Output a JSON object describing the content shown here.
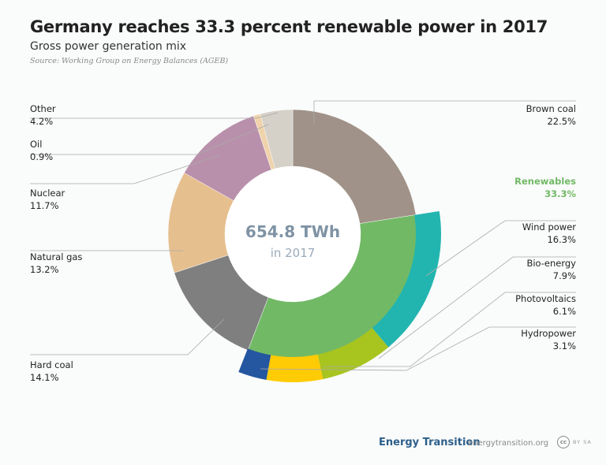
{
  "header": {
    "title": "Germany reaches 33.3 percent renewable power in 2017",
    "subtitle": "Gross power generation mix",
    "source": "Source: Working Group on Energy Balances (AGEB)"
  },
  "chart_data": {
    "type": "pie",
    "style": "nested donut",
    "center_value": "654.8 TWh",
    "center_label": "in 2017",
    "inner_ring": [
      {
        "name": "Brown coal",
        "value": 22.5,
        "label": "22.5%",
        "color": "#a09288"
      },
      {
        "name": "Renewables",
        "value": 33.3,
        "label": "33.3%",
        "color": "#72b966"
      },
      {
        "name": "Hard coal",
        "value": 14.1,
        "label": "14.1%",
        "color": "#7f7f7f"
      },
      {
        "name": "Natural gas",
        "value": 13.2,
        "label": "13.2%",
        "color": "#e6bf8e"
      },
      {
        "name": "Nuclear",
        "value": 11.7,
        "label": "11.7%",
        "color": "#b990ab"
      },
      {
        "name": "Oil",
        "value": 0.9,
        "label": "0.9%",
        "color": "#f0d3ab"
      },
      {
        "name": "Other",
        "value": 4.2,
        "label": "4.2%",
        "color": "#d5d0c8"
      }
    ],
    "outer_ring_renewables": [
      {
        "name": "Wind power",
        "value": 16.3,
        "label": "16.3%",
        "color": "#22b5b0"
      },
      {
        "name": "Bio-energy",
        "value": 7.9,
        "label": "7.9%",
        "color": "#a8c41f"
      },
      {
        "name": "Photovoltaics",
        "value": 6.1,
        "label": "6.1%",
        "color": "#ffcb05"
      },
      {
        "name": "Hydropower",
        "value": 3.1,
        "label": "3.1%",
        "color": "#2556a0"
      }
    ],
    "highlight_color": "#72b966"
  },
  "footer": {
    "brand": "Energy Transition",
    "url": "energytransition.org",
    "license_icon": "cc",
    "license": "BY SA"
  }
}
